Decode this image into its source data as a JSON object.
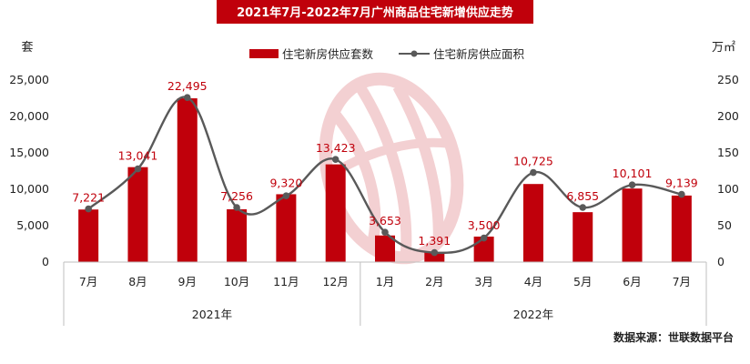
{
  "chart_data": {
    "type": "bar+line",
    "title": "2021年7月-2022年7月广州商品住宅新增供应走势",
    "categories": [
      "7月",
      "8月",
      "9月",
      "10月",
      "11月",
      "12月",
      "1月",
      "2月",
      "3月",
      "4月",
      "5月",
      "6月",
      "7月"
    ],
    "year_groups": [
      {
        "label": "2021年",
        "start": 0,
        "end": 5
      },
      {
        "label": "2022年",
        "start": 6,
        "end": 12
      }
    ],
    "series": [
      {
        "name": "住宅新房供应套数",
        "type": "bar",
        "axis": "left",
        "color": "#c0000b",
        "values": [
          7221,
          13041,
          22495,
          7256,
          9320,
          13423,
          3653,
          1391,
          3500,
          10725,
          6855,
          10101,
          9139
        ],
        "labels": [
          "7,221",
          "13,041",
          "22,495",
          "7,256",
          "9,320",
          "13,423",
          "3,653",
          "1,391",
          "3,500",
          "10,725",
          "6,855",
          "10,101",
          "9,139"
        ]
      },
      {
        "name": "住宅新房供应面积",
        "type": "line",
        "axis": "right",
        "color": "#595959",
        "values": [
          73,
          128,
          226,
          75,
          91,
          141,
          41,
          13,
          33,
          123,
          75,
          106,
          93
        ]
      }
    ],
    "y_left": {
      "unit": "套",
      "ylim": [
        0,
        25000
      ],
      "ticks": [
        "0",
        "5,000",
        "10,000",
        "15,000",
        "20,000",
        "25,000"
      ]
    },
    "y_right": {
      "unit": "万㎡",
      "ylim": [
        0,
        250
      ],
      "ticks": [
        "0",
        "50",
        "100",
        "150",
        "200",
        "250"
      ]
    },
    "legend_position": "top-center",
    "grid": false,
    "source": "数据来源：世联数据平台"
  }
}
